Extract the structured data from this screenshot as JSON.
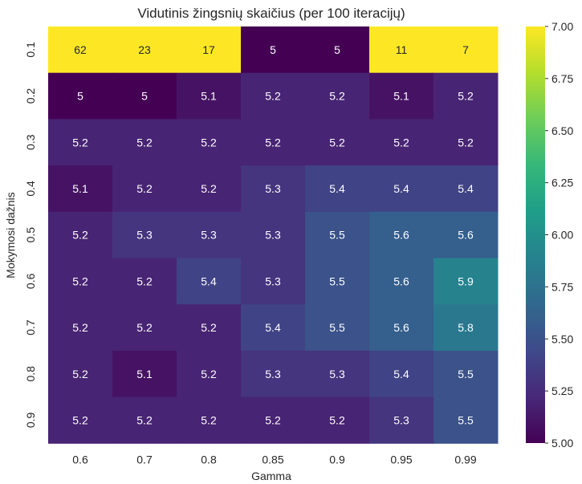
{
  "chart_data": {
    "type": "heatmap",
    "title": "Vidutinis žingsnių skaičius (per 100 iteracijų)",
    "xlabel": "Gamma",
    "ylabel": "Mokymosi dažnis",
    "x_categories": [
      "0.6",
      "0.7",
      "0.8",
      "0.85",
      "0.9",
      "0.95",
      "0.99"
    ],
    "y_categories": [
      "0.1",
      "0.2",
      "0.3",
      "0.4",
      "0.5",
      "0.6",
      "0.7",
      "0.8",
      "0.9"
    ],
    "values": [
      [
        62,
        23,
        17,
        5,
        5,
        11,
        7
      ],
      [
        5,
        5,
        5.1,
        5.2,
        5.2,
        5.1,
        5.2
      ],
      [
        5.2,
        5.2,
        5.2,
        5.2,
        5.2,
        5.2,
        5.2
      ],
      [
        5.1,
        5.2,
        5.2,
        5.3,
        5.4,
        5.4,
        5.4
      ],
      [
        5.2,
        5.3,
        5.3,
        5.3,
        5.5,
        5.6,
        5.6
      ],
      [
        5.2,
        5.2,
        5.4,
        5.3,
        5.5,
        5.6,
        5.9
      ],
      [
        5.2,
        5.2,
        5.2,
        5.4,
        5.5,
        5.6,
        5.8
      ],
      [
        5.2,
        5.1,
        5.2,
        5.3,
        5.3,
        5.4,
        5.5
      ],
      [
        5.2,
        5.2,
        5.2,
        5.2,
        5.2,
        5.3,
        5.5
      ]
    ],
    "color_range": [
      5.0,
      7.0
    ],
    "colormap": "viridis",
    "colorbar_ticks": [
      "5.00",
      "5.25",
      "5.50",
      "5.75",
      "6.00",
      "6.25",
      "6.50",
      "6.75",
      "7.00"
    ],
    "grid": false
  }
}
